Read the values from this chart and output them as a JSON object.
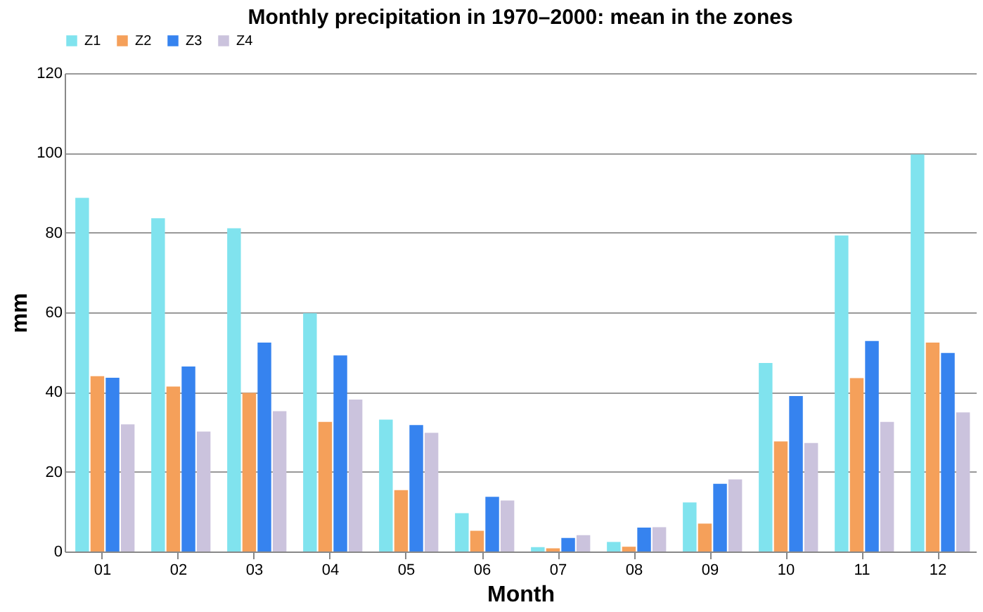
{
  "chart_data": {
    "type": "bar",
    "title": "Monthly precipitation in 1970–2000: mean in the zones",
    "xlabel": "Month",
    "ylabel": "mm",
    "categories": [
      "01",
      "02",
      "03",
      "04",
      "05",
      "06",
      "07",
      "08",
      "09",
      "10",
      "11",
      "12"
    ],
    "series": [
      {
        "name": "Z1",
        "color": "#80e3ee",
        "values": [
          88.7,
          83.6,
          81.1,
          59.8,
          33.1,
          9.6,
          1.1,
          2.4,
          12.3,
          47.3,
          79.3,
          99.6
        ]
      },
      {
        "name": "Z2",
        "color": "#f5a05a",
        "values": [
          44.0,
          41.4,
          39.8,
          32.5,
          15.4,
          5.2,
          0.8,
          1.2,
          7.0,
          27.6,
          43.5,
          52.4
        ]
      },
      {
        "name": "Z3",
        "color": "#3683ef",
        "values": [
          43.6,
          46.4,
          52.4,
          49.2,
          31.7,
          13.7,
          3.4,
          6.0,
          17.0,
          39.0,
          52.8,
          49.8
        ]
      },
      {
        "name": "Z4",
        "color": "#cbc3dd",
        "values": [
          31.9,
          30.1,
          35.2,
          38.1,
          29.8,
          12.8,
          4.1,
          6.1,
          18.1,
          27.2,
          32.5,
          34.9
        ]
      }
    ],
    "ylim": [
      0,
      120
    ],
    "yticks": [
      0,
      20,
      40,
      60,
      80,
      100,
      120
    ],
    "grid": "y",
    "legend": "top"
  }
}
